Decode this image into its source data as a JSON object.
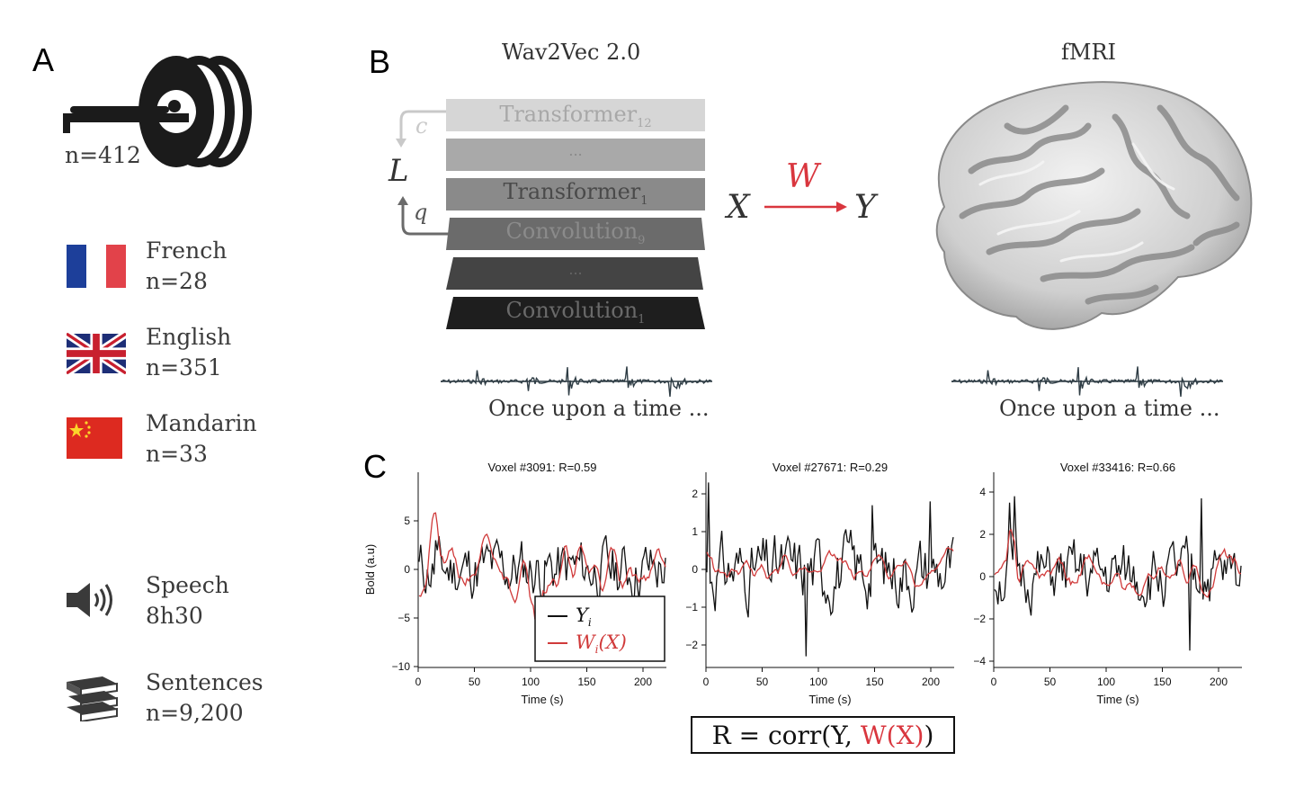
{
  "panel_a": {
    "letter": "A",
    "participants": "n=412",
    "languages": [
      {
        "name": "French",
        "n": "n=28"
      },
      {
        "name": "English",
        "n": "n=351"
      },
      {
        "name": "Mandarin",
        "n": "n=33"
      }
    ],
    "speech": {
      "label": "Speech",
      "value": "8h30"
    },
    "sentences": {
      "label": "Sentences",
      "value": "n=9,200"
    }
  },
  "panel_b": {
    "letter": "B",
    "model_title": "Wav2Vec 2.0",
    "fmri_title": "fMRI",
    "layers": [
      {
        "label": "Transformer",
        "sub": "12"
      },
      {
        "label": "...",
        "sub": ""
      },
      {
        "label": "Transformer",
        "sub": "1"
      },
      {
        "label": "Convolution",
        "sub": "9"
      },
      {
        "label": "...",
        "sub": ""
      },
      {
        "label": "Convolution",
        "sub": "1"
      }
    ],
    "loss_label": "L",
    "c_label": "c",
    "q_label": "q",
    "x_label": "X",
    "w_label": "W",
    "y_label": "Y",
    "stimulus_text_left": "Once upon a time ...",
    "stimulus_text_right": "Once upon a time ...",
    "colors": {
      "red": "#d9363e",
      "layer_light": "#d3d3d3",
      "layer_dark": "#1e1e1e"
    }
  },
  "panel_c": {
    "letter": "C",
    "plots": [
      {
        "title": "Voxel #3091: R=0.59",
        "ylabel": "Bold (a.u)",
        "xlabel": "Time (s)",
        "yticks": [
          "5",
          "0",
          "−5",
          "−10"
        ],
        "xticks": [
          "0",
          "50",
          "100",
          "150",
          "200"
        ]
      },
      {
        "title": "Voxel #27671: R=0.29",
        "ylabel": "",
        "xlabel": "Time (s)",
        "yticks": [
          "2",
          "1",
          "0",
          "−1",
          "−2"
        ],
        "xticks": [
          "0",
          "50",
          "100",
          "150",
          "200"
        ]
      },
      {
        "title": "Voxel #33416: R=0.66",
        "ylabel": "",
        "xlabel": "Time (s)",
        "yticks": [
          "4",
          "2",
          "0",
          "−2",
          "−4"
        ],
        "xticks": [
          "0",
          "50",
          "100",
          "150",
          "200"
        ]
      }
    ],
    "legend": {
      "y": "Y",
      "y_sub": "i",
      "w": "W",
      "w_sub": "i",
      "w_arg": "(X)"
    },
    "formula": {
      "left": "R = corr(Y, ",
      "red": "W(X)",
      "right": ")"
    }
  }
}
